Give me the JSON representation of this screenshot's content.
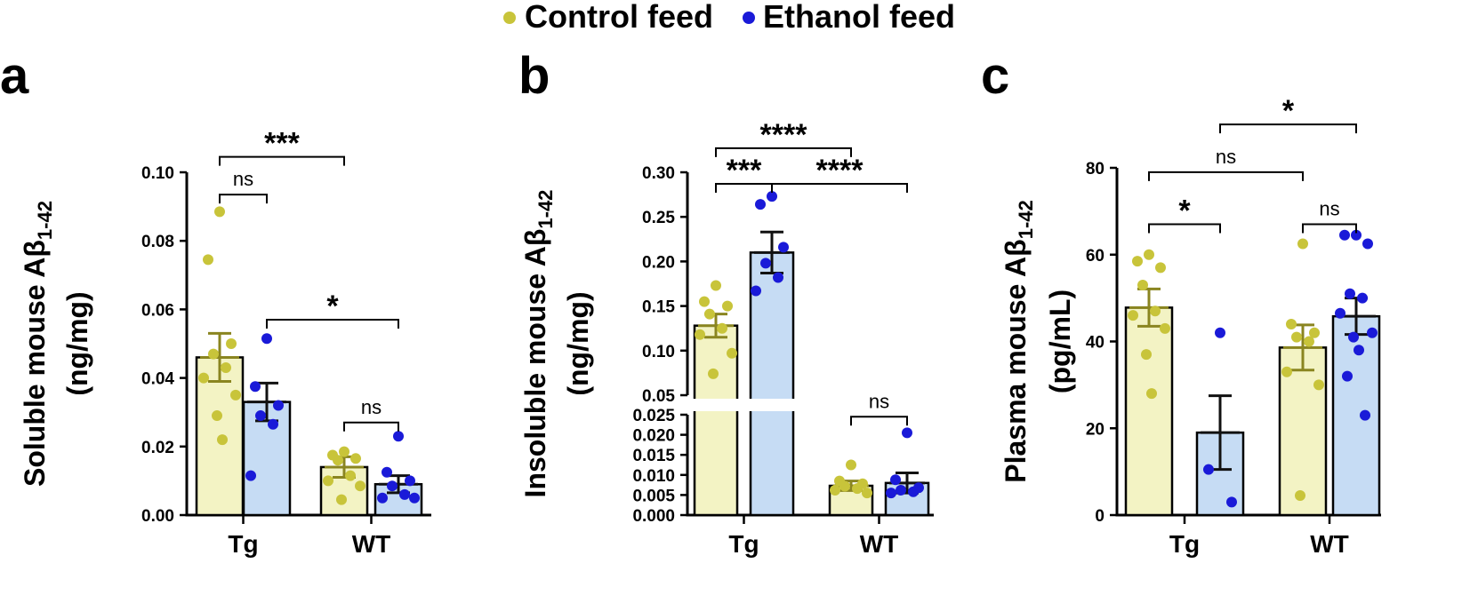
{
  "legend": {
    "items": [
      {
        "label": "Control feed",
        "color": "#c8c43a"
      },
      {
        "label": "Ethanol feed",
        "color": "#1a1ad8"
      }
    ]
  },
  "chart_data": [
    {
      "panel_label": "a",
      "type": "bar",
      "ylabel_line1": "Soluble mouse Aβ",
      "ylabel_sub": "1-42",
      "ylabel_line2": "(ng/mg)",
      "ylim": [
        0,
        0.1
      ],
      "yticks": [
        "0.00",
        "0.02",
        "0.04",
        "0.06",
        "0.08",
        "0.10"
      ],
      "categories": [
        "Tg",
        "WT"
      ],
      "series": [
        {
          "name": "Control feed",
          "values": [
            0.046,
            0.014
          ],
          "errors": [
            0.007,
            0.003
          ],
          "points": [
            [
              0.0885,
              0.0745,
              0.05,
              0.047,
              0.043,
              0.04,
              0.035,
              0.029,
              0.022
            ],
            [
              0.0185,
              0.0175,
              0.0165,
              0.016,
              0.0115,
              0.01,
              0.0085,
              0.0045
            ]
          ]
        },
        {
          "name": "Ethanol feed",
          "values": [
            0.033,
            0.009
          ],
          "errors": [
            0.0055,
            0.0025
          ],
          "points": [
            [
              0.0515,
              0.0375,
              0.032,
              0.029,
              0.0265,
              0.0115
            ],
            [
              0.023,
              0.0125,
              0.01,
              0.0085,
              0.006,
              0.005,
              0.005
            ]
          ]
        }
      ],
      "significance": [
        {
          "label": "***",
          "from": [
            0,
            0
          ],
          "to": [
            1,
            0
          ],
          "level": 0.1045
        },
        {
          "label": "ns",
          "from": [
            0,
            0
          ],
          "to": [
            0,
            1
          ],
          "level": 0.0935
        },
        {
          "label": "*",
          "from": [
            0,
            1
          ],
          "to": [
            1,
            1
          ],
          "level": 0.057
        },
        {
          "label": "ns",
          "from": [
            1,
            0
          ],
          "to": [
            1,
            1
          ],
          "level": 0.027
        }
      ]
    },
    {
      "panel_label": "b",
      "type": "bar",
      "ylabel_line1": "Insoluble mouse Aβ",
      "ylabel_sub": "1-42",
      "ylabel_line2": "(ng/mg)",
      "broken_axis": true,
      "ylim_lower": [
        0,
        0.025
      ],
      "ylim_upper": [
        0.05,
        0.3
      ],
      "yticks_lower": [
        "0.000",
        "0.005",
        "0.010",
        "0.015",
        "0.020",
        "0.025"
      ],
      "yticks_upper": [
        "0.05",
        "0.10",
        "0.15",
        "0.20",
        "0.25",
        "0.30"
      ],
      "categories": [
        "Tg",
        "WT"
      ],
      "series": [
        {
          "name": "Control feed",
          "values": [
            0.128,
            0.0073
          ],
          "errors": [
            0.013,
            0.0012
          ],
          "points": [
            [
              0.173,
              0.155,
              0.15,
              0.141,
              0.125,
              0.118,
              0.097,
              0.074
            ],
            [
              0.0125,
              0.0085,
              0.0078,
              0.0072,
              0.0066,
              0.0062,
              0.0055
            ]
          ]
        },
        {
          "name": "Ethanol feed",
          "values": [
            0.21,
            0.008
          ],
          "errors": [
            0.023,
            0.0025
          ],
          "points": [
            [
              0.273,
              0.264,
              0.216,
              0.198,
              0.182,
              0.167
            ],
            [
              0.0205,
              0.0088,
              0.0068,
              0.0062,
              0.0058,
              0.0055
            ]
          ]
        }
      ],
      "significance": [
        {
          "label": "****",
          "from": [
            0,
            0
          ],
          "to": [
            1,
            0
          ],
          "level": 0.327
        },
        {
          "label": "***",
          "from": [
            0,
            0
          ],
          "to": [
            0,
            1
          ],
          "level": 0.287
        },
        {
          "label": "****",
          "from": [
            0,
            1
          ],
          "to": [
            1,
            1
          ],
          "level": 0.287
        },
        {
          "label": "ns",
          "from": [
            1,
            0
          ],
          "to": [
            1,
            1
          ],
          "level": 0.0245
        }
      ]
    },
    {
      "panel_label": "c",
      "type": "bar",
      "ylabel_line1": "Plasma mouse Aβ",
      "ylabel_sub": "1-42",
      "ylabel_line2": "(pg/mL)",
      "ylim": [
        0,
        80
      ],
      "yticks": [
        "0",
        "20",
        "40",
        "60",
        "80"
      ],
      "categories": [
        "Tg",
        "WT"
      ],
      "series": [
        {
          "name": "Control feed",
          "values": [
            47.8,
            38.6
          ],
          "errors": [
            4.3,
            5.2
          ],
          "points": [
            [
              60,
              58.5,
              57,
              53,
              47,
              46,
              43,
              37,
              28
            ],
            [
              62.5,
              44,
              42,
              41,
              40,
              33,
              30,
              4.5
            ]
          ]
        },
        {
          "name": "Ethanol feed",
          "values": [
            19,
            45.8
          ],
          "errors": [
            8.5,
            4.2
          ],
          "points": [
            [
              42,
              10.5,
              3
            ],
            [
              64.5,
              64.5,
              62.5,
              51,
              50,
              46.5,
              42,
              41,
              38,
              32,
              23
            ]
          ]
        }
      ],
      "significance": [
        {
          "label": "*",
          "from": [
            0,
            1
          ],
          "to": [
            1,
            1
          ],
          "level": 90
        },
        {
          "label": "ns",
          "from": [
            0,
            0
          ],
          "to": [
            1,
            0
          ],
          "level": 79
        },
        {
          "label": "*",
          "from": [
            0,
            0
          ],
          "to": [
            0,
            1
          ],
          "level": 67
        },
        {
          "label": "ns",
          "from": [
            1,
            0
          ],
          "to": [
            1,
            1
          ],
          "level": 67
        }
      ]
    }
  ]
}
